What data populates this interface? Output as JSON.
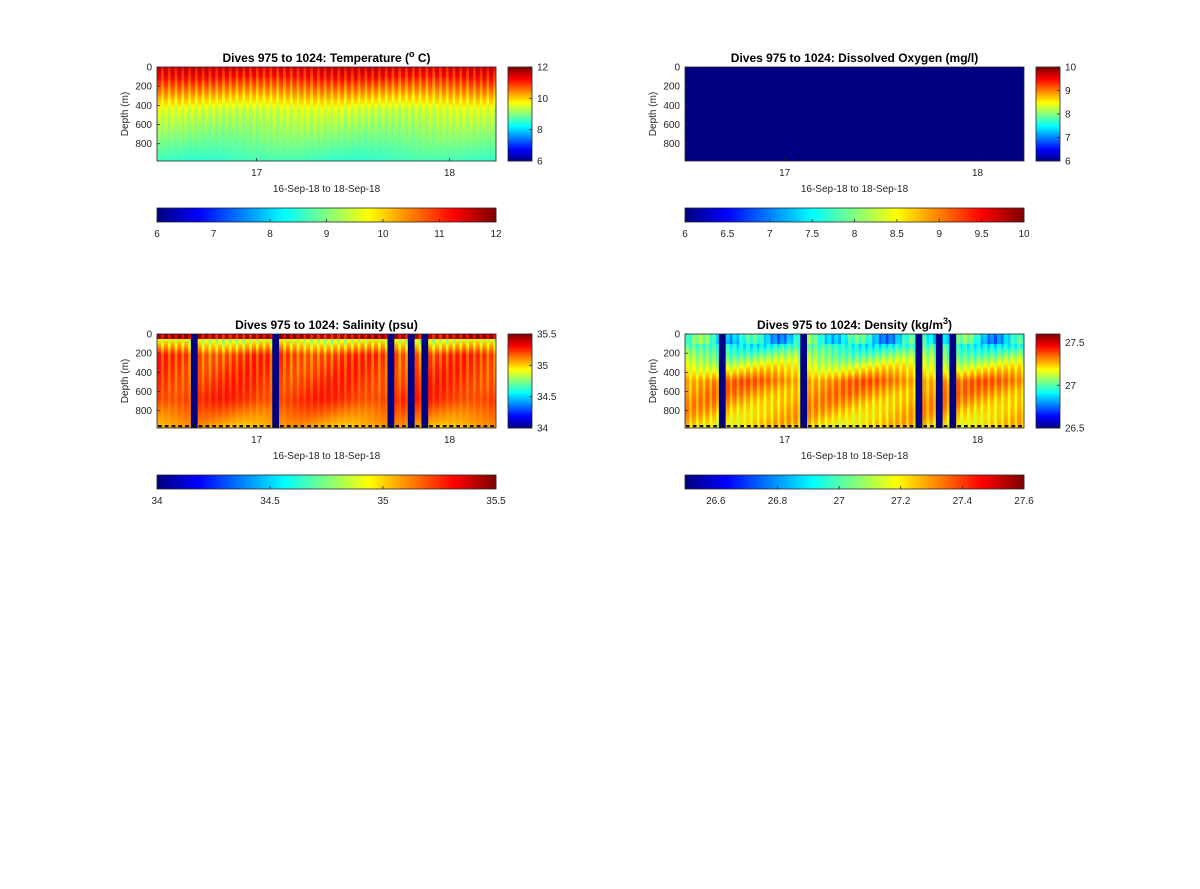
{
  "figure": {
    "background": "#ffffff",
    "colormap": "jet"
  },
  "chart_data": [
    {
      "type": "heatmap",
      "variable": "temperature",
      "title": "Dives 975 to 1024: Temperature (",
      "title_sup": "o",
      "title_end": " C)",
      "xlabel": "16-Sep-18 to 18-Sep-18",
      "ylabel": "Depth (m)",
      "x_ticks": [
        "17",
        "18"
      ],
      "y_ticks": [
        "0",
        "200",
        "400",
        "600",
        "800"
      ],
      "ylim": [
        0,
        980
      ],
      "y_reversed": true,
      "dives": 50,
      "clim": [
        6,
        12
      ],
      "colorbar_ticks": [
        "6",
        "8",
        "10",
        "12"
      ],
      "hcolorbar_ticks": [
        "6",
        "7",
        "8",
        "9",
        "10",
        "11",
        "12"
      ],
      "profile": {
        "surface_value": 11.7,
        "mid_value": 9.6,
        "deep_value": 8.6
      }
    },
    {
      "type": "heatmap",
      "variable": "oxygen",
      "title": "Dives 975 to 1024: Dissolved Oxygen (mg/l)",
      "xlabel": "16-Sep-18 to 18-Sep-18",
      "ylabel": "Depth (m)",
      "x_ticks": [
        "17",
        "18"
      ],
      "y_ticks": [
        "0",
        "200",
        "400",
        "600",
        "800"
      ],
      "ylim": [
        0,
        980
      ],
      "y_reversed": true,
      "clim": [
        6,
        10
      ],
      "uniform_value": 6,
      "colorbar_ticks": [
        "6",
        "7",
        "8",
        "9",
        "10"
      ],
      "hcolorbar_ticks": [
        "6",
        "6.5",
        "7",
        "7.5",
        "8",
        "8.5",
        "9",
        "9.5",
        "10"
      ]
    },
    {
      "type": "heatmap",
      "variable": "salinity",
      "title": "Dives 975 to 1024: Salinity (psu)",
      "xlabel": "16-Sep-18 to 18-Sep-18",
      "ylabel": "Depth (m)",
      "x_ticks": [
        "17",
        "18"
      ],
      "y_ticks": [
        "0",
        "200",
        "400",
        "600",
        "800"
      ],
      "ylim": [
        0,
        980
      ],
      "y_reversed": true,
      "dives": 50,
      "missing_dives": [
        5,
        17,
        34,
        37,
        39
      ],
      "clim": [
        34,
        35.5
      ],
      "colorbar_ticks": [
        "34",
        "34.5",
        "35",
        "35.5"
      ],
      "hcolorbar_ticks": [
        "34",
        "34.5",
        "35",
        "35.5"
      ],
      "profile": {
        "surface_value": 35.45,
        "near_surface_value": 34.9,
        "mid_value": 35.25,
        "deep_value": 35.05
      }
    },
    {
      "type": "heatmap",
      "variable": "density",
      "title": "Dives 975 to 1024: Density (kg/m",
      "title_sup": "3",
      "title_end": ")",
      "xlabel": "16-Sep-18 to 18-Sep-18",
      "ylabel": "Depth (m)",
      "x_ticks": [
        "17",
        "18"
      ],
      "y_ticks": [
        "0",
        "200",
        "400",
        "600",
        "800"
      ],
      "ylim": [
        0,
        980
      ],
      "y_reversed": true,
      "dives": 50,
      "missing_dives": [
        5,
        17,
        34,
        37,
        39
      ],
      "clim": [
        26.5,
        27.6
      ],
      "colorbar_ticks": [
        "26.5",
        "27",
        "27.5"
      ],
      "hcolorbar_ticks": [
        "26.6",
        "26.8",
        "27",
        "27.2",
        "27.4",
        "27.6"
      ],
      "profile": {
        "surface_value": 26.95,
        "mid_value": 27.35,
        "deep_value": 27.25
      }
    }
  ]
}
